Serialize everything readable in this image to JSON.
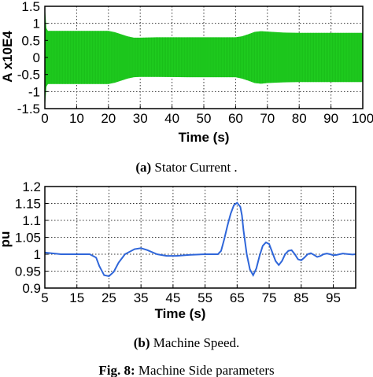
{
  "chart_data": [
    {
      "type": "line",
      "caption_label": "(a)",
      "caption_text": "Stator Current .",
      "xlabel": "Time (s)",
      "ylabel": "A x10E4",
      "xlim": [
        0,
        100
      ],
      "ylim": [
        -1.5,
        1.5
      ],
      "xticks": [
        "0",
        "10",
        "20",
        "30",
        "40",
        "50",
        "60",
        "70",
        "80",
        "90",
        "100"
      ],
      "yticks": [
        "1.5",
        "1",
        "0.5",
        "0",
        "-0.5",
        "-1",
        "-1.5"
      ],
      "grid": true,
      "series_color": "#1fcc1f",
      "series": [
        {
          "upper_envelope": {
            "x": [
              0,
              0.5,
              1,
              20,
              22,
              24,
              26,
              28,
              30,
              35,
              45,
              55,
              60,
              62,
              64,
              66,
              68,
              70,
              75,
              80,
              90,
              100
            ],
            "y": [
              1.5,
              0.85,
              0.78,
              0.78,
              0.74,
              0.68,
              0.62,
              0.58,
              0.58,
              0.59,
              0.59,
              0.59,
              0.59,
              0.62,
              0.68,
              0.75,
              0.77,
              0.76,
              0.73,
              0.72,
              0.72,
              0.72
            ]
          },
          "lower_envelope": {
            "x": [
              0,
              0.5,
              1,
              20,
              22,
              24,
              26,
              28,
              30,
              35,
              45,
              55,
              60,
              62,
              64,
              66,
              68,
              70,
              75,
              80,
              90,
              100
            ],
            "y": [
              -1.5,
              -0.85,
              -0.78,
              -0.78,
              -0.74,
              -0.68,
              -0.62,
              -0.58,
              -0.57,
              -0.57,
              -0.58,
              -0.58,
              -0.58,
              -0.62,
              -0.68,
              -0.75,
              -0.77,
              -0.75,
              -0.73,
              -0.72,
              -0.72,
              -0.72
            ]
          }
        }
      ]
    },
    {
      "type": "line",
      "caption_label": "(b)",
      "caption_text": "Machine Speed.",
      "xlabel": "Time (s)",
      "ylabel": "pu",
      "xlim": [
        5,
        102
      ],
      "ylim": [
        0.9,
        1.2
      ],
      "xticks": [
        "5",
        "15",
        "25",
        "35",
        "45",
        "55",
        "65",
        "75",
        "85",
        "95"
      ],
      "yticks": [
        "1.2",
        "1.15",
        "1.1",
        "1.05",
        "1",
        "0.95",
        "0.9"
      ],
      "grid": true,
      "series_color": "#2f66d9",
      "series": [
        {
          "x": [
            5,
            10,
            15,
            19,
            21,
            22,
            23.5,
            25,
            26.5,
            28,
            30,
            33,
            35,
            37,
            40,
            43,
            46,
            50,
            55,
            59,
            60,
            61,
            62,
            63,
            64,
            65,
            66,
            66.5,
            67,
            68,
            69,
            70,
            71,
            72,
            73,
            74,
            75,
            76,
            77,
            78,
            79,
            80,
            81,
            82,
            83,
            84,
            85,
            86,
            87,
            88,
            89,
            90,
            91,
            92,
            93,
            94,
            95,
            96,
            97,
            98,
            99,
            100,
            101,
            102
          ],
          "y": [
            1.005,
            1.0,
            1.0,
            1.0,
            0.99,
            0.965,
            0.938,
            0.935,
            0.948,
            0.975,
            1.0,
            1.015,
            1.018,
            1.012,
            1.0,
            0.995,
            0.995,
            0.998,
            1.0,
            1.0,
            1.01,
            1.045,
            1.085,
            1.12,
            1.145,
            1.152,
            1.14,
            1.115,
            1.07,
            1.0,
            0.955,
            0.938,
            0.958,
            0.995,
            1.025,
            1.035,
            1.03,
            1.005,
            0.98,
            0.968,
            0.98,
            1.0,
            1.01,
            1.012,
            1.0,
            0.985,
            0.982,
            0.99,
            1.0,
            1.003,
            0.998,
            0.992,
            0.995,
            1.0,
            1.002,
            1.0,
            0.997,
            0.998,
            1.0,
            1.002,
            1.001,
            1.0,
            0.999,
            1.0
          ]
        }
      ]
    }
  ],
  "figure_caption": {
    "label": "Fig. 8:",
    "text": "Machine Side parameters"
  }
}
